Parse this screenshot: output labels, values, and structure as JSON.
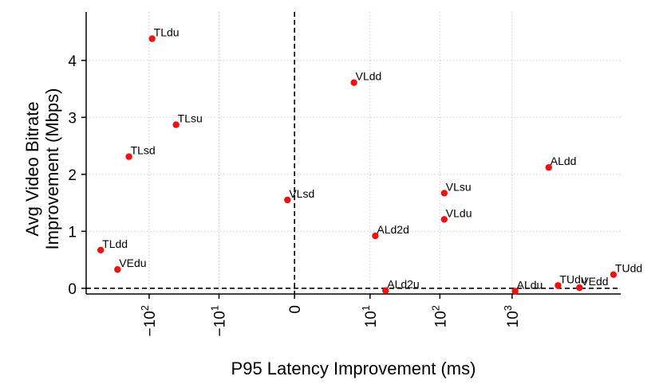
{
  "chart_data": {
    "type": "scatter",
    "title": "",
    "xlabel": "P95 Latency Improvement (ms)",
    "ylabel_lines": [
      "Avg Video Bitrate",
      "Improvement (Mbps)"
    ],
    "x_scale": "symlog",
    "y_ticks": [
      0,
      1,
      2,
      3,
      4
    ],
    "ylim": [
      -0.1,
      4.85
    ],
    "x_tick_labels": [
      {
        "value": -100,
        "label": "−10",
        "exp": "2"
      },
      {
        "value": -10,
        "label": "−10",
        "exp": "1"
      },
      {
        "value": 0,
        "label": "0",
        "exp": ""
      },
      {
        "value": 10,
        "label": "10",
        "exp": "1"
      },
      {
        "value": 100,
        "label": "10",
        "exp": "2"
      },
      {
        "value": 1000,
        "label": "10",
        "exp": "3"
      }
    ],
    "reference_lines": {
      "x": 0,
      "y": 0
    },
    "point_color": "#ee1111",
    "points": [
      {
        "label": "TLdu",
        "x": -91,
        "y": 4.38
      },
      {
        "label": "VLdd",
        "x": 5.6,
        "y": 3.61
      },
      {
        "label": "TLsu",
        "x": -42,
        "y": 2.87
      },
      {
        "label": "TLsd",
        "x": -191,
        "y": 2.31
      },
      {
        "label": "ALdd",
        "x": 3200,
        "y": 2.12
      },
      {
        "label": "VLsu",
        "x": 115,
        "y": 1.67
      },
      {
        "label": "VLsd",
        "x": -0.25,
        "y": 1.55
      },
      {
        "label": "VLdu",
        "x": 115,
        "y": 1.21
      },
      {
        "label": "ALd2d",
        "x": 12,
        "y": 0.92
      },
      {
        "label": "TLdd",
        "x": -470,
        "y": 0.67
      },
      {
        "label": "VEdu",
        "x": -275,
        "y": 0.33
      },
      {
        "label": "TUdd",
        "x": 25000,
        "y": 0.24
      },
      {
        "label": "TUdu",
        "x": 4300,
        "y": 0.05
      },
      {
        "label": "VEdd",
        "x": 8500,
        "y": 0.01
      },
      {
        "label": "ALd2u",
        "x": 17,
        "y": -0.04
      },
      {
        "label": "ALdu",
        "x": 1100,
        "y": -0.05
      }
    ],
    "grid": true,
    "legend": "none"
  }
}
